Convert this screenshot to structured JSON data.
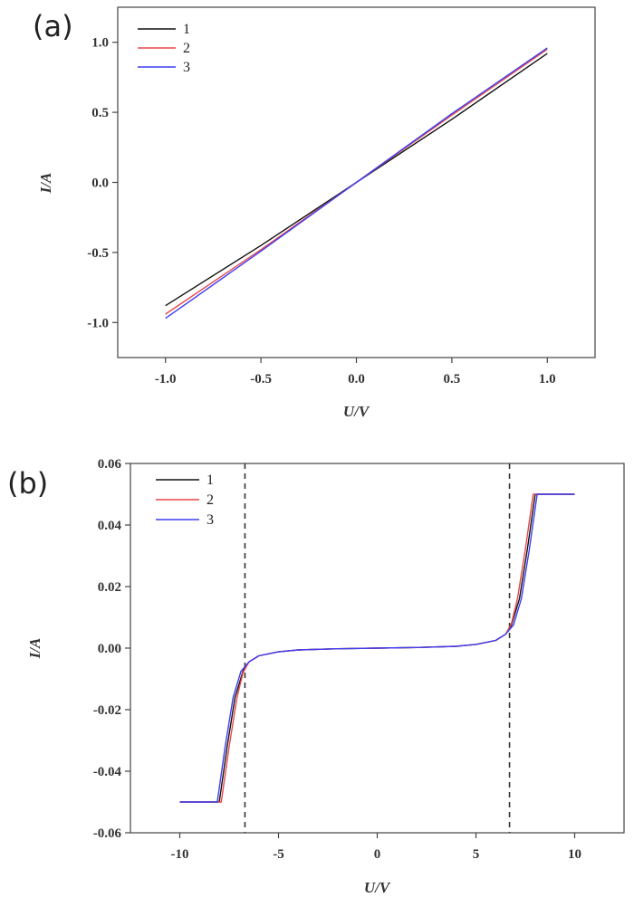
{
  "chart_data": [
    {
      "panel": "(a)",
      "type": "line",
      "xlabel": "U/V",
      "ylabel": "I/A",
      "xlim": [
        -1.25,
        1.25
      ],
      "ylim": [
        -1.25,
        1.25
      ],
      "xticks": [
        -1.0,
        -0.5,
        0.0,
        0.5,
        1.0
      ],
      "xtick_labels": [
        "-1.0",
        "-0.5",
        "0.0",
        "0.5",
        "1.0"
      ],
      "yticks": [
        -1.0,
        -0.5,
        0.0,
        0.5,
        1.0
      ],
      "ytick_labels": [
        "-1.0",
        "-0.5",
        "0.0",
        "0.5",
        "1.0"
      ],
      "grid": false,
      "legend_position": "top-left",
      "series": [
        {
          "name": "1",
          "color": "#111111",
          "x": [
            -1.0,
            -0.5,
            0.0,
            0.5,
            1.0
          ],
          "y": [
            -0.88,
            -0.45,
            0.0,
            0.45,
            0.92
          ]
        },
        {
          "name": "2",
          "color": "#e8474c",
          "x": [
            -1.0,
            -0.5,
            0.0,
            0.5,
            1.0
          ],
          "y": [
            -0.94,
            -0.48,
            0.0,
            0.48,
            0.95
          ]
        },
        {
          "name": "3",
          "color": "#3d3df2",
          "x": [
            -1.0,
            -0.5,
            0.0,
            0.5,
            1.0
          ],
          "y": [
            -0.97,
            -0.49,
            0.0,
            0.49,
            0.96
          ]
        }
      ]
    },
    {
      "panel": "(b)",
      "type": "line",
      "xlabel": "U/V",
      "ylabel": "I/A",
      "xlim": [
        -12.5,
        12.5
      ],
      "ylim": [
        -0.06,
        0.06
      ],
      "xticks": [
        -10,
        -5,
        0,
        5,
        10
      ],
      "xtick_labels": [
        "-10",
        "-5",
        "0",
        "5",
        "10"
      ],
      "yticks": [
        -0.06,
        -0.04,
        -0.02,
        0.0,
        0.02,
        0.04,
        0.06
      ],
      "ytick_labels": [
        "-0.06",
        "-0.04",
        "-0.02",
        "0.00",
        "0.02",
        "0.04",
        "0.06"
      ],
      "grid": false,
      "legend_position": "top-left",
      "vertical_markers": [
        -6.7,
        6.7
      ],
      "series": [
        {
          "name": "1",
          "color": "#111111",
          "x": [
            -10,
            -8.0,
            -7.6,
            -7.2,
            -6.8,
            -6.5,
            -6.0,
            -5.0,
            -4.0,
            -2.0,
            0,
            2.0,
            4.0,
            5.0,
            6.0,
            6.5,
            6.8,
            7.2,
            7.6,
            8.0,
            10
          ],
          "y": [
            -0.05,
            -0.05,
            -0.032,
            -0.016,
            -0.0075,
            -0.0045,
            -0.0025,
            -0.0012,
            -0.0006,
            -0.0002,
            0,
            0.0002,
            0.0006,
            0.0012,
            0.0025,
            0.0045,
            0.0075,
            0.016,
            0.032,
            0.05,
            0.05
          ]
        },
        {
          "name": "2",
          "color": "#e8474c",
          "x": [
            -10,
            -7.9,
            -7.5,
            -7.1,
            -6.8,
            -6.5,
            -6.0,
            -5.0,
            -4.0,
            -2.0,
            0,
            2.0,
            4.0,
            5.0,
            6.0,
            6.5,
            6.8,
            7.1,
            7.5,
            7.9,
            10
          ],
          "y": [
            -0.05,
            -0.05,
            -0.032,
            -0.016,
            -0.008,
            -0.0045,
            -0.0025,
            -0.0012,
            -0.0006,
            -0.0002,
            0,
            0.0002,
            0.0006,
            0.0012,
            0.0025,
            0.0045,
            0.008,
            0.016,
            0.032,
            0.05,
            0.05
          ]
        },
        {
          "name": "3",
          "color": "#3d3df2",
          "x": [
            -10,
            -8.1,
            -7.7,
            -7.3,
            -6.9,
            -6.5,
            -6.0,
            -5.0,
            -4.0,
            -2.0,
            0,
            2.0,
            4.0,
            5.0,
            6.0,
            6.5,
            6.9,
            7.3,
            7.7,
            8.1,
            10
          ],
          "y": [
            -0.05,
            -0.05,
            -0.032,
            -0.016,
            -0.0075,
            -0.0045,
            -0.0025,
            -0.0012,
            -0.0006,
            -0.0002,
            0,
            0.0002,
            0.0006,
            0.0012,
            0.0025,
            0.0045,
            0.0075,
            0.016,
            0.032,
            0.05,
            0.05
          ]
        }
      ]
    }
  ]
}
